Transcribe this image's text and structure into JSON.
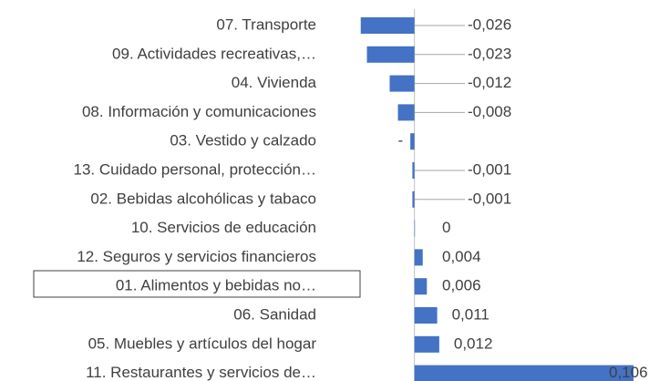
{
  "chart_data": {
    "type": "hbar",
    "categories": [
      "07. Transporte",
      "09. Actividades recreativas,…",
      "04. Vivienda",
      "08. Información y comunicaciones",
      "03. Vestido y calzado",
      "13. Cuidado personal, protección…",
      "02. Bebidas alcohólicas y tabaco",
      "10. Servicios de educación",
      "12. Seguros y servicios financieros",
      "01. Alimentos y bebidas no…",
      "06. Sanidad",
      "05. Muebles y artículos del hogar",
      "11. Restaurantes y servicios de…"
    ],
    "values": [
      -0.026,
      -0.023,
      -0.012,
      -0.008,
      -0.002,
      -0.001,
      -0.001,
      0,
      0.004,
      0.006,
      0.011,
      0.012,
      0.106
    ],
    "value_labels": [
      "-0,026",
      "-0,023",
      "-0,012",
      "-0,008",
      "-",
      "-0,001",
      "-0,001",
      "0",
      "0,004",
      "0,006",
      "0,011",
      "0,012",
      "0,106"
    ],
    "color": "#4472c4",
    "xlim": [
      -0.04,
      0.11
    ]
  }
}
